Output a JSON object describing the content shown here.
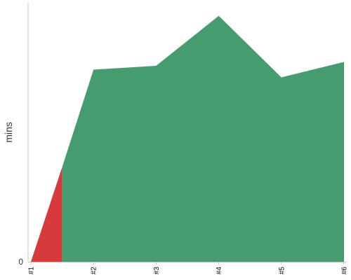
{
  "chart_data": {
    "type": "area",
    "title": "",
    "xlabel": "",
    "ylabel": "mins",
    "categories": [
      "#1",
      "#2",
      "#3",
      "#4",
      "#5",
      "#6"
    ],
    "ylim": [
      0,
      100
    ],
    "y_ticks": [
      "0"
    ],
    "grid": false,
    "legend": "none",
    "series": [
      {
        "color": "#d73a3a",
        "points": [
          {
            "x": 1,
            "y": 0
          },
          {
            "x": 1.5,
            "y": 37
          }
        ]
      },
      {
        "color": "#459c6e",
        "points": [
          {
            "x": 1.5,
            "y": 37
          },
          {
            "x": 2,
            "y": 75
          },
          {
            "x": 3,
            "y": 76.5
          },
          {
            "x": 4,
            "y": 96
          },
          {
            "x": 5,
            "y": 72
          },
          {
            "x": 6,
            "y": 78
          }
        ]
      }
    ]
  }
}
